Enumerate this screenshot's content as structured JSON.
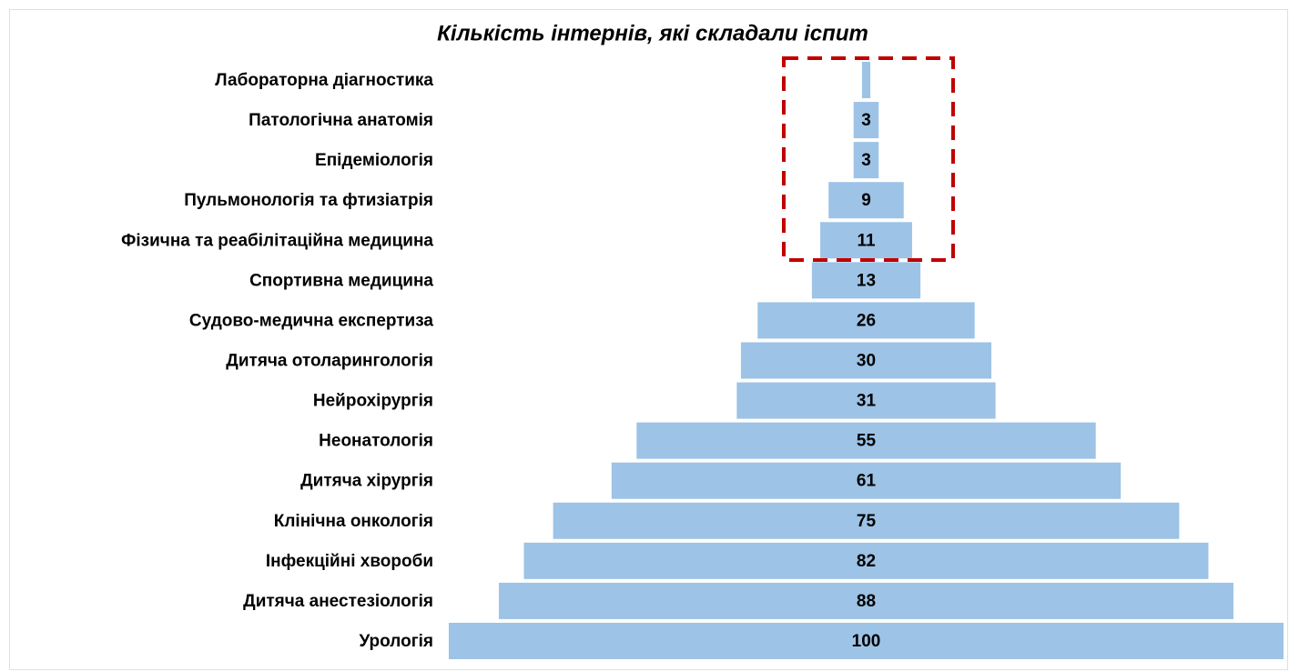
{
  "chart_data": {
    "type": "funnel",
    "title": "Кількість інтернів, які складали іспит",
    "categories": [
      "Лабораторна діагностика",
      "Патологічна анатомія",
      "Епідеміологія",
      "Пульмонологія та фтизіатрія",
      "Фізична та реабілітаційна медицина",
      "Спортивна медицина",
      "Судово-медична експертиза",
      "Дитяча отоларингологія",
      "Нейрохірургія",
      "Неонатологія",
      "Дитяча хірургія",
      "Клінічна онкологія",
      "Інфекційні хвороби",
      "Дитяча анестезіологія",
      "Урологія"
    ],
    "values": [
      1,
      3,
      3,
      9,
      11,
      13,
      26,
      30,
      31,
      55,
      61,
      75,
      82,
      88,
      100
    ],
    "xlim": [
      0,
      100
    ],
    "color": "#9dc3e6"
  }
}
